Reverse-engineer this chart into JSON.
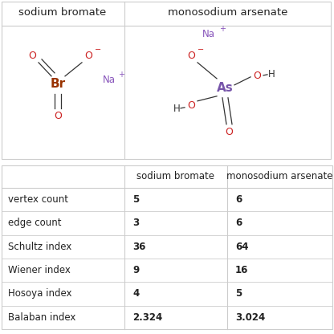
{
  "col_headers": [
    "",
    "sodium bromate",
    "monosodium arsenate"
  ],
  "rows": [
    [
      "vertex count",
      "5",
      "6"
    ],
    [
      "edge count",
      "3",
      "6"
    ],
    [
      "Schultz index",
      "36",
      "64"
    ],
    [
      "Wiener index",
      "9",
      "16"
    ],
    [
      "Hosoya index",
      "4",
      "5"
    ],
    [
      "Balaban index",
      "2.324",
      "3.024"
    ]
  ],
  "top_headers": [
    "sodium bromate",
    "monosodium arsenate"
  ],
  "bg_color": "#ffffff",
  "line_color": "#cccccc",
  "text_color": "#222222",
  "red": "#cc2222",
  "purple": "#8855bb",
  "dark": "#333333",
  "br_color": "#993300",
  "as_color": "#7755aa",
  "fig_width": 4.16,
  "fig_height": 4.16
}
